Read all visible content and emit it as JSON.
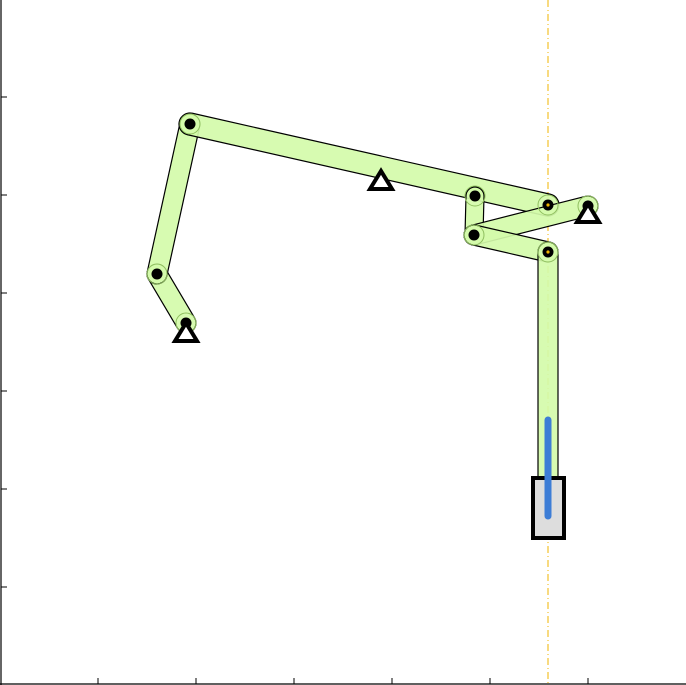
{
  "diagram": {
    "type": "linkage-mechanism",
    "axes": {
      "frame_color": "#000000",
      "tick_count_x": 6,
      "tick_count_y": 6,
      "tick_labels_visible": false
    },
    "colors": {
      "link_fill": "#d4fbaa",
      "link_stroke": "#000000",
      "joint_fill": "#000000",
      "ground_fill": "#ffffff",
      "ground_stroke": "#000000",
      "guide_line": "#f0b400",
      "slider_track": "#3d7dd6",
      "slider_block_fill": "#dddddd",
      "slider_block_stroke": "#000000"
    },
    "icons": {
      "ground_pivot": "triangle-icon",
      "joint": "circle-dot-icon"
    }
  }
}
